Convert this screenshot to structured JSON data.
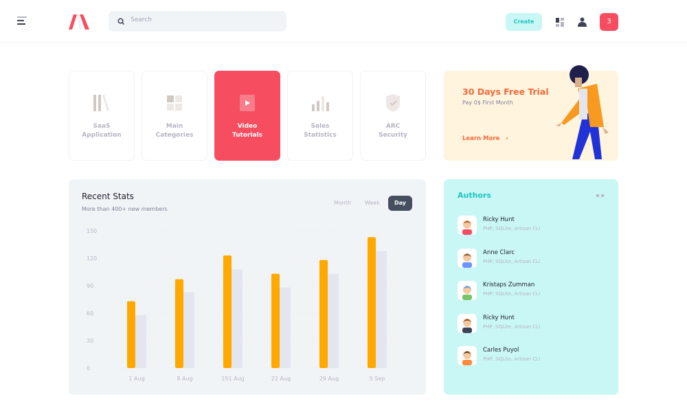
{
  "header": {
    "search_placeholder": "Search",
    "create_label": "Create",
    "notification_count": "3",
    "icons": [
      "menu-icon",
      "logo",
      "search-icon",
      "apps-grid-icon",
      "user-icon"
    ]
  },
  "tiles": [
    {
      "label1": "SaaS",
      "label2": "Application",
      "icon": "library-icon",
      "active": false
    },
    {
      "label1": "Main",
      "label2": "Categories",
      "icon": "grid-icon",
      "active": false
    },
    {
      "label1": "Video",
      "label2": "Tutorials",
      "icon": "video-icon",
      "active": true
    },
    {
      "label1": "Sales",
      "label2": "Statistics",
      "icon": "bar-chart-icon",
      "active": false
    },
    {
      "label1": "ARC",
      "label2": "Security",
      "icon": "shield-check-icon",
      "active": false
    }
  ],
  "trial": {
    "title": "30 Days Free Trial",
    "subtitle": "Pay 0$ First Month",
    "link": "Learn More"
  },
  "stats": {
    "title": "Recent Stats",
    "subtitle": "More than 400+ new members",
    "tabs": [
      "Month",
      "Week",
      "Day"
    ],
    "active_tab": "Day"
  },
  "chart_data": {
    "type": "bar",
    "categories": [
      "1 Aug",
      "8 Aug",
      "151 Aug",
      "22 Aug",
      "29 Aug",
      "5 Sep"
    ],
    "series": [
      {
        "values": [
          73,
          97,
          123,
          103,
          118,
          143
        ],
        "color": "#ffa800"
      },
      {
        "values": [
          58,
          83,
          108,
          88,
          103,
          128
        ],
        "color": "#e4e6ef"
      }
    ],
    "yticks": [
      0,
      30,
      60,
      90,
      120,
      150
    ],
    "ylim": [
      0,
      150
    ],
    "grid": true
  },
  "authors": {
    "title": "Authors",
    "items": [
      {
        "name": "Ricky Hunt",
        "skills": "PHP, SQLite, Artisan CLI",
        "hair": "#b5651d",
        "shirt": "#f64e60"
      },
      {
        "name": "Anne Clarc",
        "skills": "PHP, SQLite, Artisan CLI",
        "hair": "#8b5a2b",
        "shirt": "#6993ff"
      },
      {
        "name": "Kristaps Zumman",
        "skills": "PHP, SQLite, Artisan CLI",
        "hair": "#5aa0e6",
        "shirt": "#7ac36a"
      },
      {
        "name": "Ricky Hunt",
        "skills": "PHP, SQLite, Artisan CLI",
        "hair": "#a0522d",
        "shirt": "#3f4254"
      },
      {
        "name": "Carles Puyol",
        "skills": "PHP, SQLite, Artisan CLI",
        "hair": "#6b4226",
        "shirt": "#ff8a3d"
      }
    ]
  }
}
